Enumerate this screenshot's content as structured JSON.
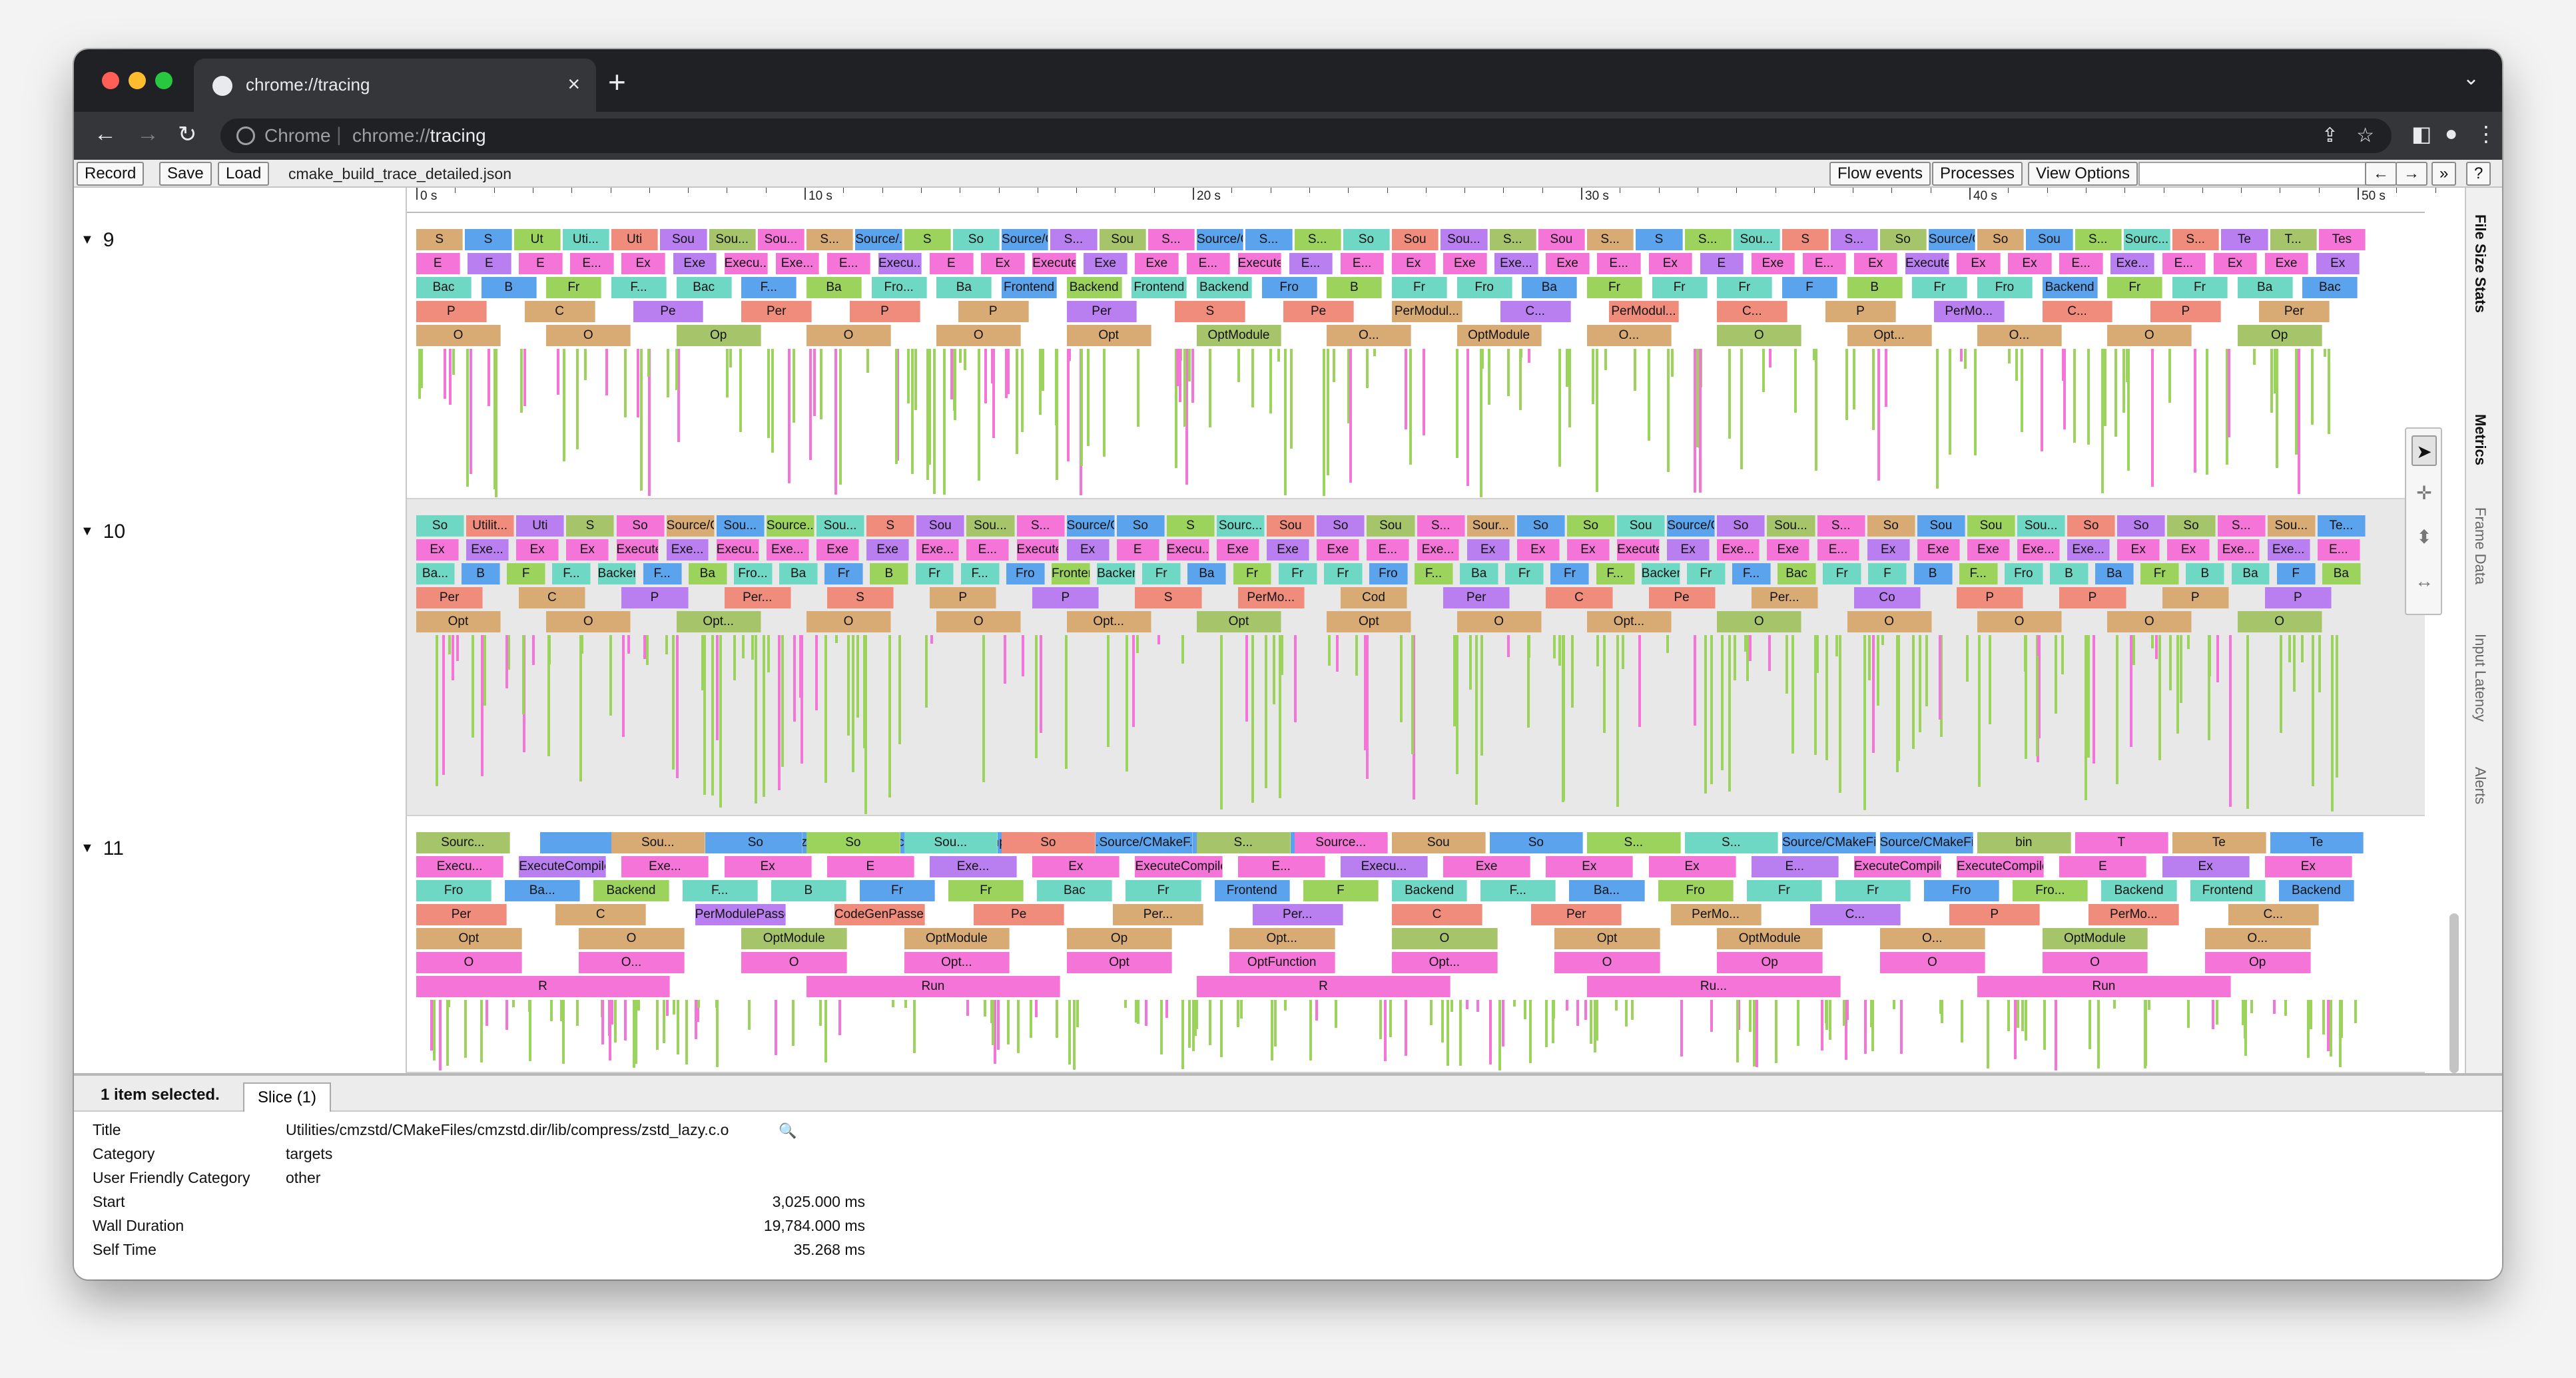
{
  "browser": {
    "tab_title": "chrome://tracing",
    "omnibox_scheme_label": "Chrome",
    "omnibox_prefix": "chrome://",
    "omnibox_host": "tracing",
    "icons": [
      "back-icon",
      "forward-icon",
      "reload-icon",
      "share-icon",
      "bookmark-star-icon",
      "side-panel-icon",
      "profile-icon",
      "menu-icon"
    ]
  },
  "toolbar": {
    "record": "Record",
    "save": "Save",
    "load": "Load",
    "filename": "cmake_build_trace_detailed.json",
    "flow_events": "Flow events",
    "processes": "Processes",
    "view_options": "View Options",
    "nav_left": "←",
    "nav_right": "→",
    "more": "»",
    "help": "?"
  },
  "ruler": {
    "ticks": [
      "0 s",
      "10 s",
      "20 s",
      "30 s",
      "40 s",
      "50 s"
    ]
  },
  "tracks": [
    {
      "label": "9",
      "rows": [
        [
          "S",
          "S",
          "Ut",
          "Uti...",
          "Uti",
          "Sou",
          "Sou...",
          "Sou...",
          "S...",
          "Source/...",
          "S",
          "So",
          "Source/CMakeFiles/CMakeLib...",
          "S...",
          "Sou",
          "S...",
          "Source/CMakeFiles/CMa...",
          "S...",
          "S...",
          "So",
          "Sou",
          "Sou...",
          "S...",
          "Sou",
          "S...",
          "S",
          "S...",
          "Sou...",
          "S",
          "S...",
          "So",
          "Source/CMakeFiles...",
          "So",
          "Sou",
          "S...",
          "Sourc...",
          "S...",
          "Te",
          "T...",
          "Tes"
        ],
        [
          "E",
          "E",
          "E",
          "E...",
          "Ex",
          "Exe",
          "Execu...",
          "Exe...",
          "E...",
          "Execu...",
          "E",
          "Ex",
          "ExecuteCompiler",
          "Exe",
          "Exe",
          "E...",
          "ExecuteCompiler",
          "E...",
          "E...",
          "Ex",
          "Exe",
          "Exe...",
          "Exe",
          "E...",
          "Ex",
          "E",
          "Exe",
          "E...",
          "Ex",
          "ExecuteCompiler",
          "Ex",
          "Ex",
          "E...",
          "Exe...",
          "E...",
          "Ex",
          "Exe",
          "Ex"
        ],
        [
          "Bac",
          "B",
          "Fr",
          "F...",
          "Bac",
          "F...",
          "Ba",
          "Fro...",
          "Ba",
          "Frontend",
          "Backend",
          "Frontend",
          "Backend",
          "Fro",
          "B",
          "Fr",
          "Fro",
          "Ba",
          "Fr",
          "Fr",
          "Fr",
          "F",
          "B",
          "Fr",
          "Fro",
          "Backend",
          "Fr",
          "Fr",
          "Ba",
          "Bac"
        ],
        [
          "P",
          "C",
          "Pe",
          "Per",
          "P",
          "P",
          "Per",
          "S",
          "Pe",
          "PerModul...",
          "C...",
          "PerModul...",
          "C...",
          "P",
          "PerMo...",
          "C...",
          "P",
          "Per"
        ],
        [
          "O",
          "O",
          "Op",
          "O",
          "O",
          "Opt",
          "OptModule",
          "O...",
          "OptModule",
          "O...",
          "O",
          "Opt...",
          "O...",
          "O",
          "Op"
        ]
      ]
    },
    {
      "label": "10",
      "rows": [
        [
          "So",
          "Utilit...",
          "Uti",
          "S",
          "So",
          "Source/CM...",
          "Sou...",
          "Source...",
          "Sou...",
          "S",
          "Sou",
          "Sou...",
          "S...",
          "Source/CMakeFil...",
          "So",
          "S",
          "Sourc...",
          "Sou",
          "So",
          "Sou",
          "S...",
          "Sour...",
          "So",
          "So",
          "Sou",
          "Source/CMake...",
          "So",
          "Sou...",
          "S...",
          "So",
          "Sou",
          "Sou",
          "Sou...",
          "So",
          "So",
          "So",
          "S...",
          "Sou...",
          "Te..."
        ],
        [
          "Ex",
          "Exe...",
          "Ex",
          "Ex",
          "ExecuteC...",
          "Exe...",
          "Execu...",
          "Exe...",
          "Exe",
          "Exe",
          "Exe...",
          "E...",
          "ExecuteCompiler",
          "Ex",
          "E",
          "Execu...",
          "Exe",
          "Exe",
          "Exe",
          "E...",
          "Exe...",
          "Ex",
          "Ex",
          "Ex",
          "ExecuteCompiler",
          "Ex",
          "Exe...",
          "Exe",
          "E...",
          "Ex",
          "Exe",
          "Exe",
          "Exe...",
          "Exe...",
          "Ex",
          "Ex",
          "Exe...",
          "Exe...",
          "E..."
        ],
        [
          "Ba...",
          "B",
          "F",
          "F...",
          "Backend",
          "F...",
          "Ba",
          "Fro...",
          "Ba",
          "Fr",
          "B",
          "Fr",
          "F...",
          "Fro",
          "Frontend",
          "Backend",
          "Fr",
          "Ba",
          "Fr",
          "Fr",
          "Fr",
          "Fro",
          "F...",
          "Ba",
          "Fr",
          "Fr",
          "F...",
          "Backend",
          "Fr",
          "F...",
          "Bac",
          "Fr",
          "F",
          "B",
          "F...",
          "Fro",
          "B",
          "Ba",
          "Fr",
          "B",
          "Ba",
          "F",
          "Ba"
        ],
        [
          "Per",
          "C",
          "P",
          "Per...",
          "S",
          "P",
          "P",
          "S",
          "PerMo...",
          "Cod",
          "Per",
          "C",
          "Pe",
          "Per...",
          "Co",
          "P",
          "P",
          "P",
          "P"
        ],
        [
          "Opt",
          "O",
          "Opt...",
          "O",
          "O",
          "Opt...",
          "Opt",
          "Opt",
          "O",
          "Opt...",
          "O",
          "O",
          "O",
          "O",
          "O"
        ]
      ]
    },
    {
      "label": "11",
      "rows": [
        [
          "Sourc...",
          "Utilities/cmzstd/CMakeFiles/cmzstd.dir/lib/compress/zstd_lazy.c.o",
          "Sou...",
          "So",
          "So",
          "Sou...",
          "So",
          "Source/CMakeF...",
          "S...",
          "Source...",
          "Sou",
          "So",
          "S...",
          "S...",
          "Source/CMakeFiles/CTe...",
          "Source/CMakeFiles/CTe...",
          "bin",
          "T",
          "Te",
          "Te"
        ],
        [
          "Execu...",
          "ExecuteCompiler",
          "Exe...",
          "Ex",
          "E",
          "Exe...",
          "Ex",
          "ExecuteCompiler",
          "E...",
          "Execu...",
          "Exe",
          "Ex",
          "Ex",
          "E...",
          "ExecuteCompiler",
          "ExecuteCompiler",
          "E",
          "Ex",
          "Ex"
        ],
        [
          "Fro",
          "Ba...",
          "Backend",
          "F...",
          "B",
          "Fr",
          "Fr",
          "Bac",
          "Fr",
          "Frontend",
          "F",
          "Backend",
          "F...",
          "Ba...",
          "Fro",
          "Fr",
          "Fr",
          "Fro",
          "Fro...",
          "Backend",
          "Frontend",
          "Backend"
        ],
        [
          "Per",
          "C",
          "PerModulePasses",
          "CodeGenPasses",
          "Pe",
          "Per...",
          "Per...",
          "C",
          "Per",
          "PerMo...",
          "C...",
          "P",
          "PerMo...",
          "C..."
        ],
        [
          "Opt",
          "O",
          "OptModule",
          "OptModule",
          "Op",
          "Opt...",
          "O",
          "Opt",
          "OptModule",
          "O...",
          "OptModule",
          "O..."
        ],
        [
          "O",
          "O...",
          "O",
          "Opt...",
          "Opt",
          "OptFunction",
          "Opt...",
          "O",
          "Op",
          "O",
          "O",
          "Op"
        ],
        [
          "R",
          "Run",
          "R",
          "Ru...",
          "Run"
        ]
      ]
    }
  ],
  "side_tabs": [
    "File Size Stats",
    "Metrics",
    "Frame Data",
    "Input Latency",
    "Alerts"
  ],
  "tools": [
    "select-arrow-icon",
    "pan-cross-icon",
    "zoom-icon",
    "timing-icon"
  ],
  "colors": {
    "green": "#9bd35c",
    "pink": "#f574d7",
    "teal": "#6fd8c5",
    "blue": "#5ba3ec",
    "salmon": "#f08c7c",
    "tan": "#d8ab74",
    "purple": "#b97ef0",
    "olive": "#a6c46a"
  },
  "analysis": {
    "selection_text": "1 item selected.",
    "tab_label": "Slice (1)",
    "fields": [
      {
        "key": "Title",
        "value": "Utilities/cmzstd/CMakeFiles/cmzstd.dir/lib/compress/zstd_lazy.c.o"
      },
      {
        "key": "Category",
        "value": "targets"
      },
      {
        "key": "User Friendly Category",
        "value": "other"
      },
      {
        "key": "Start",
        "value": "3,025.000 ms"
      },
      {
        "key": "Wall Duration",
        "value": "19,784.000 ms"
      },
      {
        "key": "Self Time",
        "value": "35.268 ms"
      }
    ]
  }
}
